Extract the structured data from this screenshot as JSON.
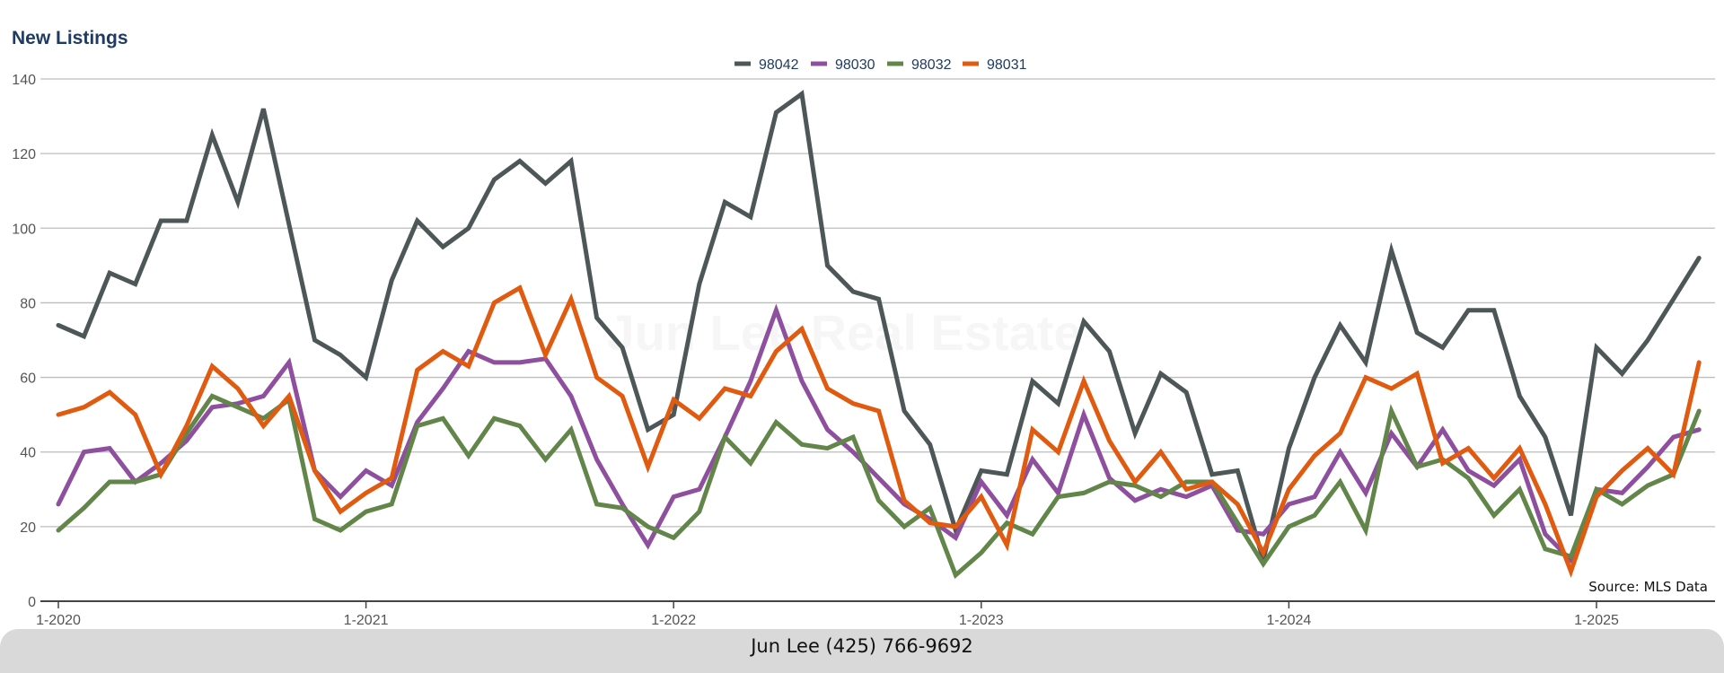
{
  "footer": {
    "contact": "Jun Lee (425) 766-9692"
  },
  "chart_data": {
    "type": "line",
    "title": "New Listings",
    "watermark": "Jun Lee Real Estate",
    "source": "Source: MLS Data",
    "xlabel": "",
    "ylabel": "",
    "ylim": [
      0,
      140
    ],
    "yticks": [
      0,
      20,
      40,
      60,
      80,
      100,
      120,
      140
    ],
    "xticks": [
      "1-2020",
      "1-2021",
      "1-2022",
      "1-2023",
      "1-2024",
      "1-2025"
    ],
    "x_start": "1-2020",
    "x_frequency": "monthly",
    "grid": true,
    "legend_position": "top-center",
    "series": [
      {
        "name": "98042",
        "color": "#4e5757",
        "values": [
          74,
          71,
          88,
          85,
          102,
          102,
          125,
          107,
          132,
          101,
          70,
          66,
          60,
          86,
          102,
          95,
          100,
          113,
          118,
          112,
          118,
          76,
          68,
          46,
          50,
          85,
          107,
          103,
          131,
          136,
          90,
          83,
          81,
          51,
          42,
          19,
          35,
          34,
          59,
          53,
          75,
          67,
          45,
          61,
          56,
          34,
          35,
          11,
          41,
          60,
          74,
          64,
          94,
          72,
          68,
          78,
          78,
          55,
          44,
          23,
          68,
          61,
          70,
          81,
          92
        ]
      },
      {
        "name": "98030",
        "color": "#8e4f9e",
        "values": [
          26,
          40,
          41,
          32,
          37,
          43,
          52,
          53,
          55,
          64,
          35,
          28,
          35,
          31,
          48,
          57,
          67,
          64,
          64,
          65,
          55,
          38,
          26,
          15,
          28,
          30,
          44,
          59,
          78,
          59,
          46,
          40,
          33,
          26,
          22,
          17,
          32,
          23,
          38,
          29,
          50,
          33,
          27,
          30,
          28,
          31,
          19,
          18,
          26,
          28,
          40,
          29,
          45,
          36,
          46,
          35,
          31,
          38,
          18,
          11,
          30,
          29,
          36,
          44,
          46
        ]
      },
      {
        "name": "98032",
        "color": "#62864a",
        "values": [
          19,
          25,
          32,
          32,
          34,
          45,
          55,
          52,
          49,
          54,
          22,
          19,
          24,
          26,
          47,
          49,
          39,
          49,
          47,
          38,
          46,
          26,
          25,
          20,
          17,
          24,
          44,
          37,
          48,
          42,
          41,
          44,
          27,
          20,
          25,
          7,
          13,
          21,
          18,
          28,
          29,
          32,
          31,
          28,
          32,
          32,
          21,
          10,
          20,
          23,
          32,
          19,
          51,
          36,
          38,
          33,
          23,
          30,
          14,
          12,
          30,
          26,
          31,
          34,
          51
        ]
      },
      {
        "name": "98031",
        "color": "#e05a10",
        "values": [
          50,
          52,
          56,
          50,
          34,
          47,
          63,
          57,
          47,
          55,
          35,
          24,
          29,
          33,
          62,
          67,
          63,
          80,
          84,
          66,
          81,
          60,
          55,
          36,
          54,
          49,
          57,
          55,
          67,
          73,
          57,
          53,
          51,
          27,
          21,
          20,
          28,
          15,
          46,
          40,
          59,
          43,
          32,
          40,
          30,
          32,
          26,
          13,
          30,
          39,
          45,
          60,
          57,
          61,
          37,
          41,
          33,
          41,
          26,
          8,
          28,
          35,
          41,
          34,
          64
        ]
      }
    ]
  }
}
